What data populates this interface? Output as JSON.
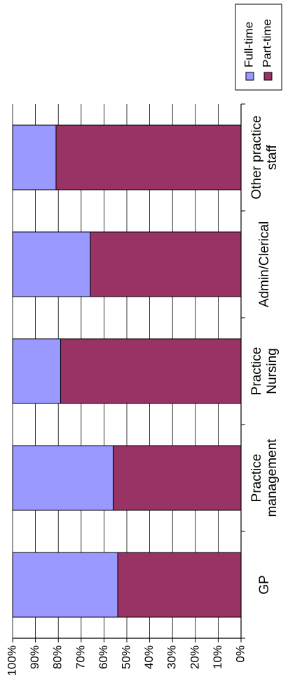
{
  "chart_data": {
    "type": "bar",
    "stacked": true,
    "percent_stacked": true,
    "orientation": "horizontal",
    "categories": [
      "GP",
      "Practice management",
      "Practice Nursing",
      "Admin/Clerical",
      "Other practice staff"
    ],
    "category_label_lines": [
      [
        "GP"
      ],
      [
        "Practice",
        "management"
      ],
      [
        "Practice",
        "Nursing"
      ],
      [
        "Admin/Clerical"
      ],
      [
        "Other practice",
        "staff"
      ]
    ],
    "series": [
      {
        "name": "Full-time",
        "values": [
          46,
          44,
          21,
          34,
          19
        ]
      },
      {
        "name": "Part-time",
        "values": [
          54,
          56,
          79,
          66,
          81
        ]
      }
    ],
    "colors": {
      "Full-time": "#9999ff",
      "Part-time": "#993366"
    },
    "value_axis": {
      "range": [
        0,
        100
      ],
      "ticks": [
        "0%",
        "10%",
        "20%",
        "30%",
        "40%",
        "50%",
        "60%",
        "70%",
        "80%",
        "90%",
        "100%"
      ]
    },
    "grid": true,
    "legend_position": "top-right",
    "title": "",
    "xlabel": "",
    "ylabel": ""
  }
}
